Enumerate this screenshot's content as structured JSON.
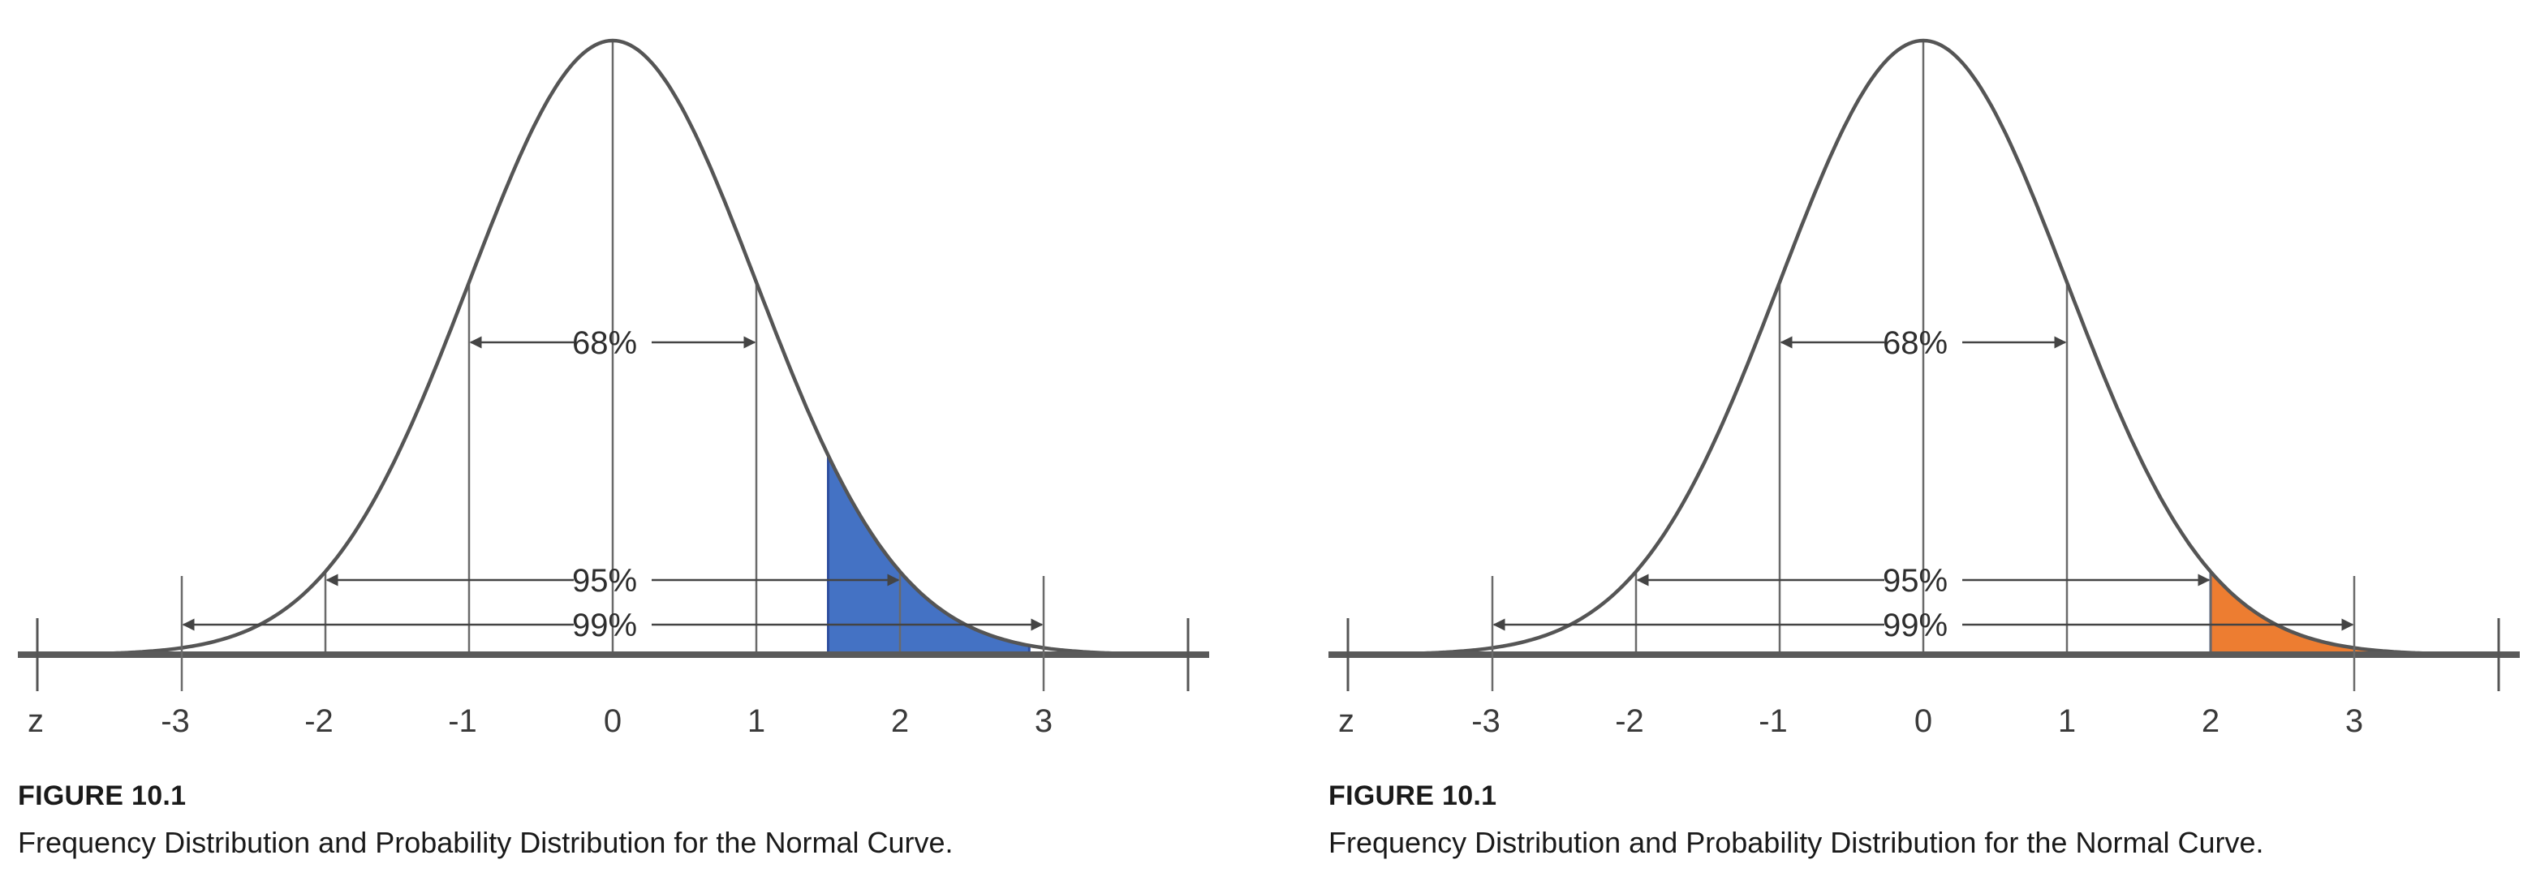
{
  "chart_data": [
    {
      "type": "area",
      "curve": "standard normal density",
      "x_axis_label": "z",
      "x_ticks": [
        -3,
        -2,
        -1,
        0,
        1,
        2,
        3
      ],
      "xlim": [
        -4.2,
        4.2
      ],
      "ranges": [
        {
          "label": "68%",
          "from": -1,
          "to": 1
        },
        {
          "label": "95%",
          "from": -2,
          "to": 2
        },
        {
          "label": "99%",
          "from": -3,
          "to": 3
        }
      ],
      "shaded_region": {
        "from": 1.5,
        "to": 2.9,
        "color": "#4472c4"
      },
      "figure_label": "FIGURE 10.1",
      "caption": "Frequency Distribution and Probability Distribution for the Normal Curve."
    },
    {
      "type": "area",
      "curve": "standard normal density",
      "x_axis_label": "z",
      "x_ticks": [
        -3,
        -2,
        -1,
        0,
        1,
        2,
        3
      ],
      "xlim": [
        -4.2,
        4.2
      ],
      "ranges": [
        {
          "label": "68%",
          "from": -1,
          "to": 1
        },
        {
          "label": "95%",
          "from": -2,
          "to": 2
        },
        {
          "label": "99%",
          "from": -3,
          "to": 3
        }
      ],
      "shaded_region": {
        "from": 2.0,
        "to": 3.45,
        "color": "#ed7d31"
      },
      "figure_label": "FIGURE 10.1",
      "caption": "Frequency Distribution and Probability Distribution for the Normal Curve."
    }
  ]
}
